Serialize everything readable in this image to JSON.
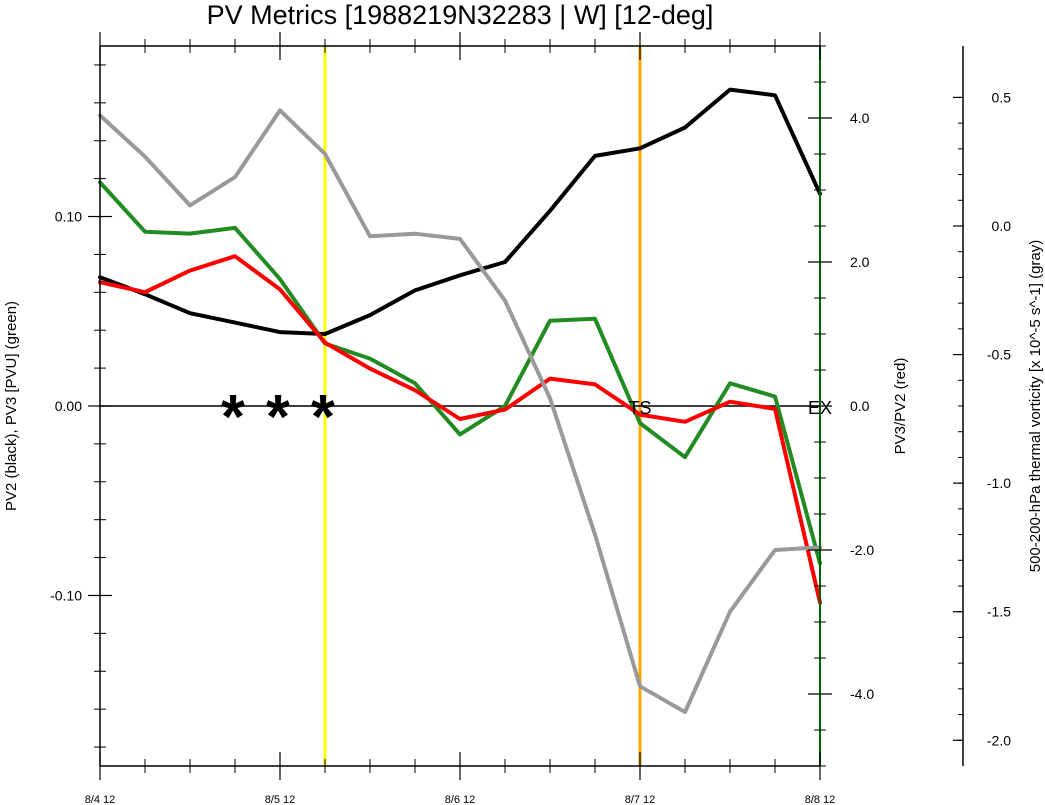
{
  "chart_data": {
    "type": "line",
    "title": "PV Metrics [1988219N32283 | W] [12-deg]",
    "ylabel_left": "PV2 (black), PV3 [PVU] (green)",
    "ylabel_mid": "PV3/PV2 (red)",
    "ylabel_right": "500-200-hPa thermal vorticity [x 10^-5 s^-1] (gray)",
    "x_ticks": [
      "8/4 12",
      "8/5 12",
      "8/6 12",
      "8/7 12",
      "8/8 12"
    ],
    "x_tick_positions": [
      0,
      4,
      8,
      12,
      16
    ],
    "xlim": [
      0,
      16
    ],
    "left_axis": {
      "ylim": [
        -0.19,
        0.19
      ],
      "ticks": [
        0.1,
        0.0,
        -0.1
      ],
      "tick_labels": [
        "0.10",
        "0.00",
        "-0.10"
      ]
    },
    "mid_axis": {
      "ylim": [
        -5.0,
        5.0
      ],
      "ticks": [
        4.0,
        2.0,
        0.0,
        -2.0,
        -4.0
      ],
      "tick_labels": [
        "4.0",
        "2.0",
        "0.0",
        "-2.0",
        "-4.0"
      ]
    },
    "right_axis": {
      "ylim": [
        -2.1,
        0.7
      ],
      "ticks": [
        0.5,
        0.0,
        -0.5,
        -1.0,
        -1.5,
        -2.0
      ],
      "tick_labels": [
        "0.5",
        "0.0",
        "-0.5",
        "-1.0",
        "-1.5",
        "-2.0"
      ]
    },
    "vlines": [
      {
        "x": 5,
        "color": "#ffff00"
      },
      {
        "x": 12,
        "color": "#ffa500"
      }
    ],
    "markers": [
      {
        "x": 3,
        "y": 0.0,
        "text": "*"
      },
      {
        "x": 4,
        "y": 0.0,
        "text": "*"
      },
      {
        "x": 5,
        "y": 0.0,
        "text": "*"
      }
    ],
    "annotations": [
      {
        "x": 12,
        "y": 0.0,
        "text": "TS"
      },
      {
        "x": 16,
        "y": 0.0,
        "text": "EX"
      }
    ],
    "series": [
      {
        "axis": "left",
        "color": "#000000",
        "x": [
          0,
          1,
          2,
          3,
          4,
          5,
          6,
          7,
          8,
          9,
          10,
          11,
          12,
          13,
          14,
          15,
          16
        ],
        "values": [
          0.068,
          0.059,
          0.049,
          0.044,
          0.039,
          0.038,
          0.048,
          0.061,
          0.069,
          0.076,
          0.103,
          0.132,
          0.136,
          0.147,
          0.167,
          0.164,
          0.112
        ]
      },
      {
        "axis": "left",
        "color": "#228b22",
        "x": [
          0,
          1,
          2,
          3,
          4,
          5,
          6,
          7,
          8,
          9,
          10,
          11,
          12,
          13,
          14,
          15,
          16
        ],
        "values": [
          0.118,
          0.092,
          0.091,
          0.094,
          0.067,
          0.033,
          0.025,
          0.012,
          -0.015,
          0.0,
          0.045,
          0.046,
          -0.009,
          -0.027,
          0.012,
          0.005,
          -0.083
        ]
      },
      {
        "axis": "mid",
        "color": "#ff0000",
        "x": [
          0,
          1,
          2,
          3,
          4,
          5,
          6,
          7,
          8,
          9,
          10,
          11,
          12,
          13,
          14,
          15,
          16
        ],
        "values": [
          1.72,
          1.58,
          1.88,
          2.08,
          1.62,
          0.88,
          0.52,
          0.22,
          -0.18,
          -0.05,
          0.38,
          0.3,
          -0.12,
          -0.22,
          0.06,
          -0.04,
          -2.73
        ]
      },
      {
        "axis": "right",
        "color": "#999999",
        "x": [
          0,
          1,
          2,
          3,
          4,
          5,
          6,
          7,
          8,
          9,
          10,
          11,
          12,
          13,
          14,
          15,
          16
        ],
        "values": [
          0.43,
          0.27,
          0.08,
          0.19,
          0.45,
          0.28,
          -0.04,
          -0.03,
          -0.05,
          -0.29,
          -0.67,
          -1.2,
          -1.79,
          -1.89,
          -1.5,
          -1.26,
          -1.25
        ]
      }
    ]
  }
}
